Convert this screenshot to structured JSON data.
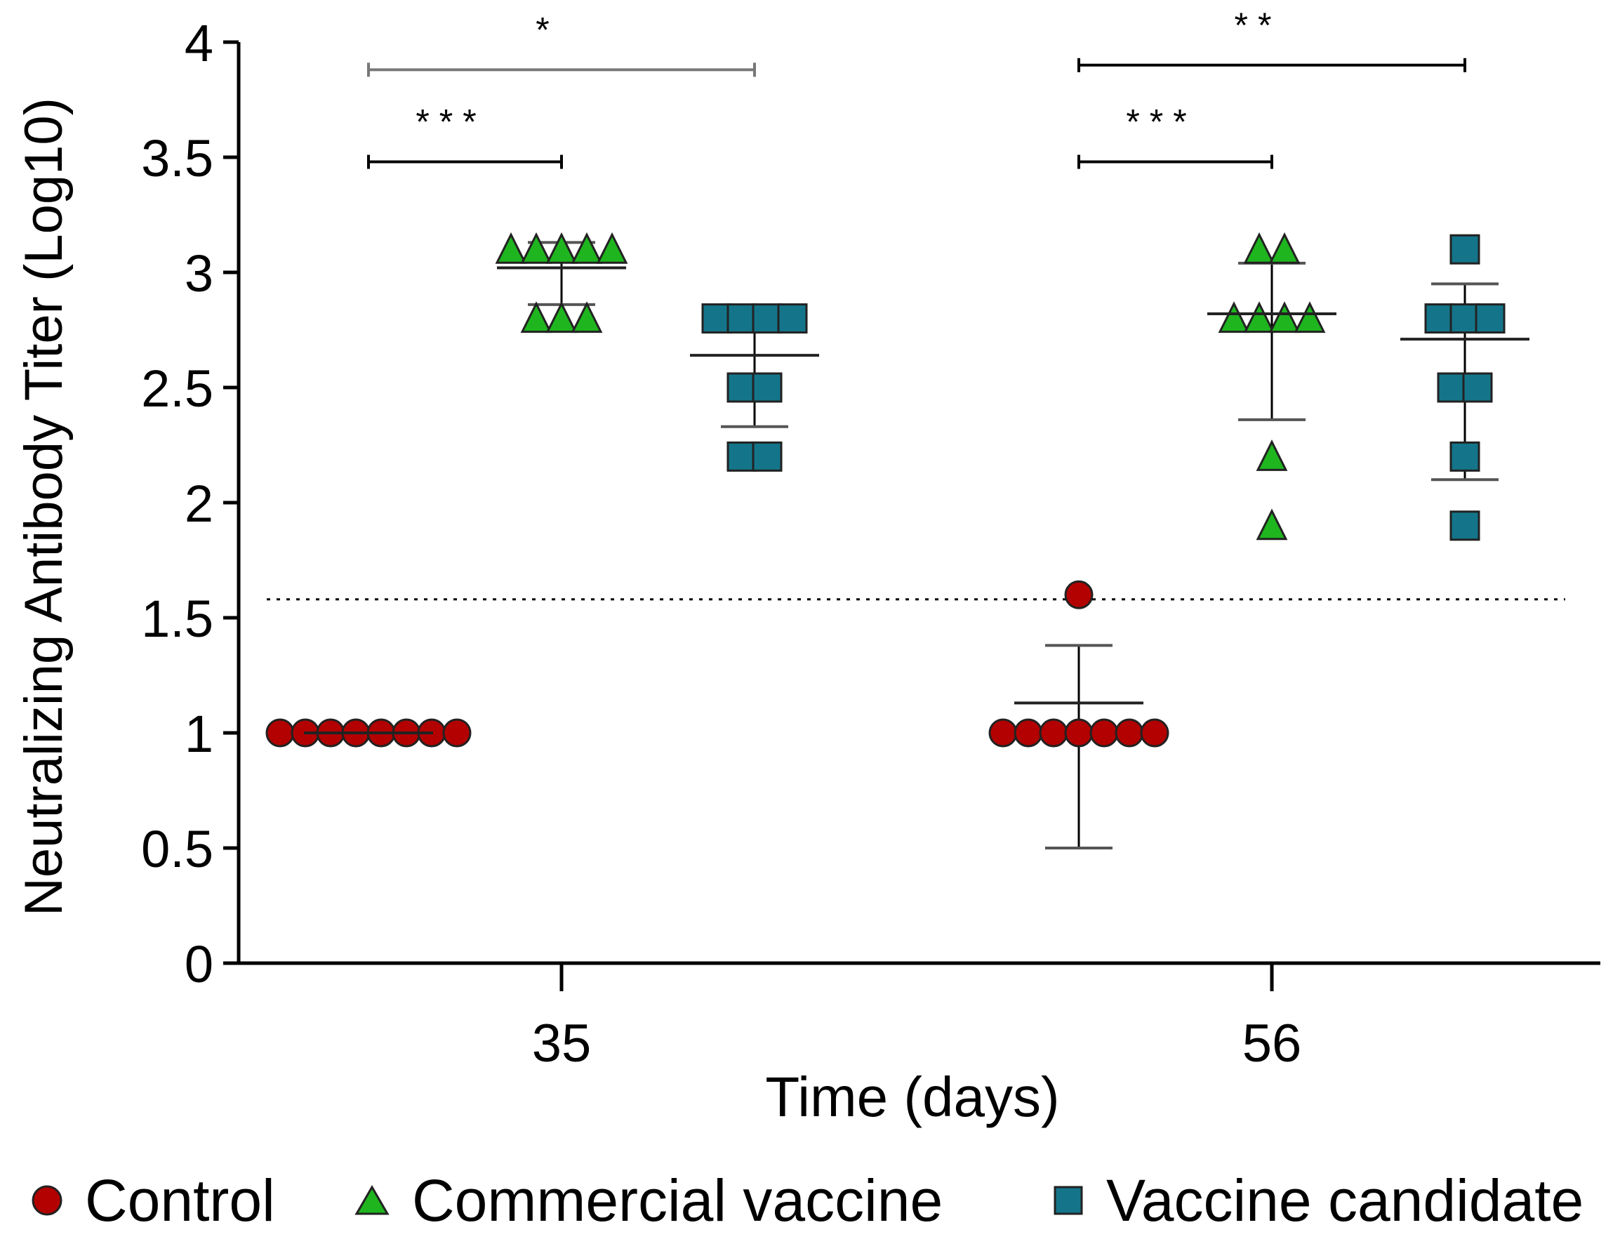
{
  "chart_data": {
    "type": "scatter",
    "title": "",
    "xlabel": "Time (days)",
    "ylabel": "Neutralizing Antibody Titer (Log10)",
    "ylim": [
      0,
      4
    ],
    "yticks": [
      "0",
      "0.5",
      "1",
      "1.5",
      "2",
      "2.5",
      "3",
      "3.5",
      "4"
    ],
    "categories": [
      "35",
      "56"
    ],
    "threshold": 1.58,
    "colors": {
      "control": "#b30000",
      "commercial": "#1fb51f",
      "candidate": "#14758a"
    },
    "series": [
      {
        "name": "Control",
        "marker": "circle",
        "color": "#b30000",
        "groups": [
          {
            "day": "35",
            "values": [
              1,
              1,
              1,
              1,
              1,
              1,
              1,
              1
            ],
            "mean": 1.0,
            "error_low": 1.0,
            "error_high": 1.0
          },
          {
            "day": "56",
            "values": [
              1,
              1,
              1,
              1,
              1,
              1,
              1,
              1.6
            ],
            "mean": 1.13,
            "error_low": 0.5,
            "error_high": 1.38
          }
        ]
      },
      {
        "name": "Commercial vaccine",
        "marker": "triangle",
        "color": "#1fb51f",
        "groups": [
          {
            "day": "35",
            "values": [
              3.1,
              3.1,
              3.1,
              3.1,
              3.1,
              2.8,
              2.8,
              2.8
            ],
            "mean": 3.02,
            "error_low": 2.86,
            "error_high": 3.13
          },
          {
            "day": "56",
            "values": [
              3.1,
              3.1,
              2.8,
              2.8,
              2.8,
              2.8,
              2.2,
              1.9
            ],
            "mean": 2.82,
            "error_low": 2.36,
            "error_high": 3.04
          }
        ]
      },
      {
        "name": "Vaccine candidate",
        "marker": "square",
        "color": "#14758a",
        "groups": [
          {
            "day": "35",
            "values": [
              2.8,
              2.8,
              2.8,
              2.8,
              2.5,
              2.5,
              2.2,
              2.2
            ],
            "mean": 2.64,
            "error_low": 2.33,
            "error_high": 2.76
          },
          {
            "day": "56",
            "values": [
              3.1,
              2.8,
              2.8,
              2.8,
              2.5,
              2.5,
              2.2,
              1.9
            ],
            "mean": 2.71,
            "error_low": 2.1,
            "error_high": 2.95
          }
        ]
      }
    ],
    "significance": [
      {
        "label": "*",
        "day": "35",
        "from": "Control",
        "to": "Vaccine candidate",
        "y": 3.88
      },
      {
        "label": "***",
        "day": "35",
        "from": "Control",
        "to": "Commercial vaccine",
        "y": 3.48
      },
      {
        "label": "**",
        "day": "56",
        "from": "Control",
        "to": "Vaccine candidate",
        "y": 3.9
      },
      {
        "label": "***",
        "day": "56",
        "from": "Control",
        "to": "Commercial vaccine",
        "y": 3.48
      }
    ],
    "legend_position": "bottom"
  },
  "legend": [
    {
      "label": "Control",
      "marker": "circle",
      "color": "#b30000"
    },
    {
      "label": "Commercial vaccine",
      "marker": "triangle",
      "color": "#1fb51f"
    },
    {
      "label": "Vaccine candidate",
      "marker": "square",
      "color": "#14758a"
    }
  ]
}
